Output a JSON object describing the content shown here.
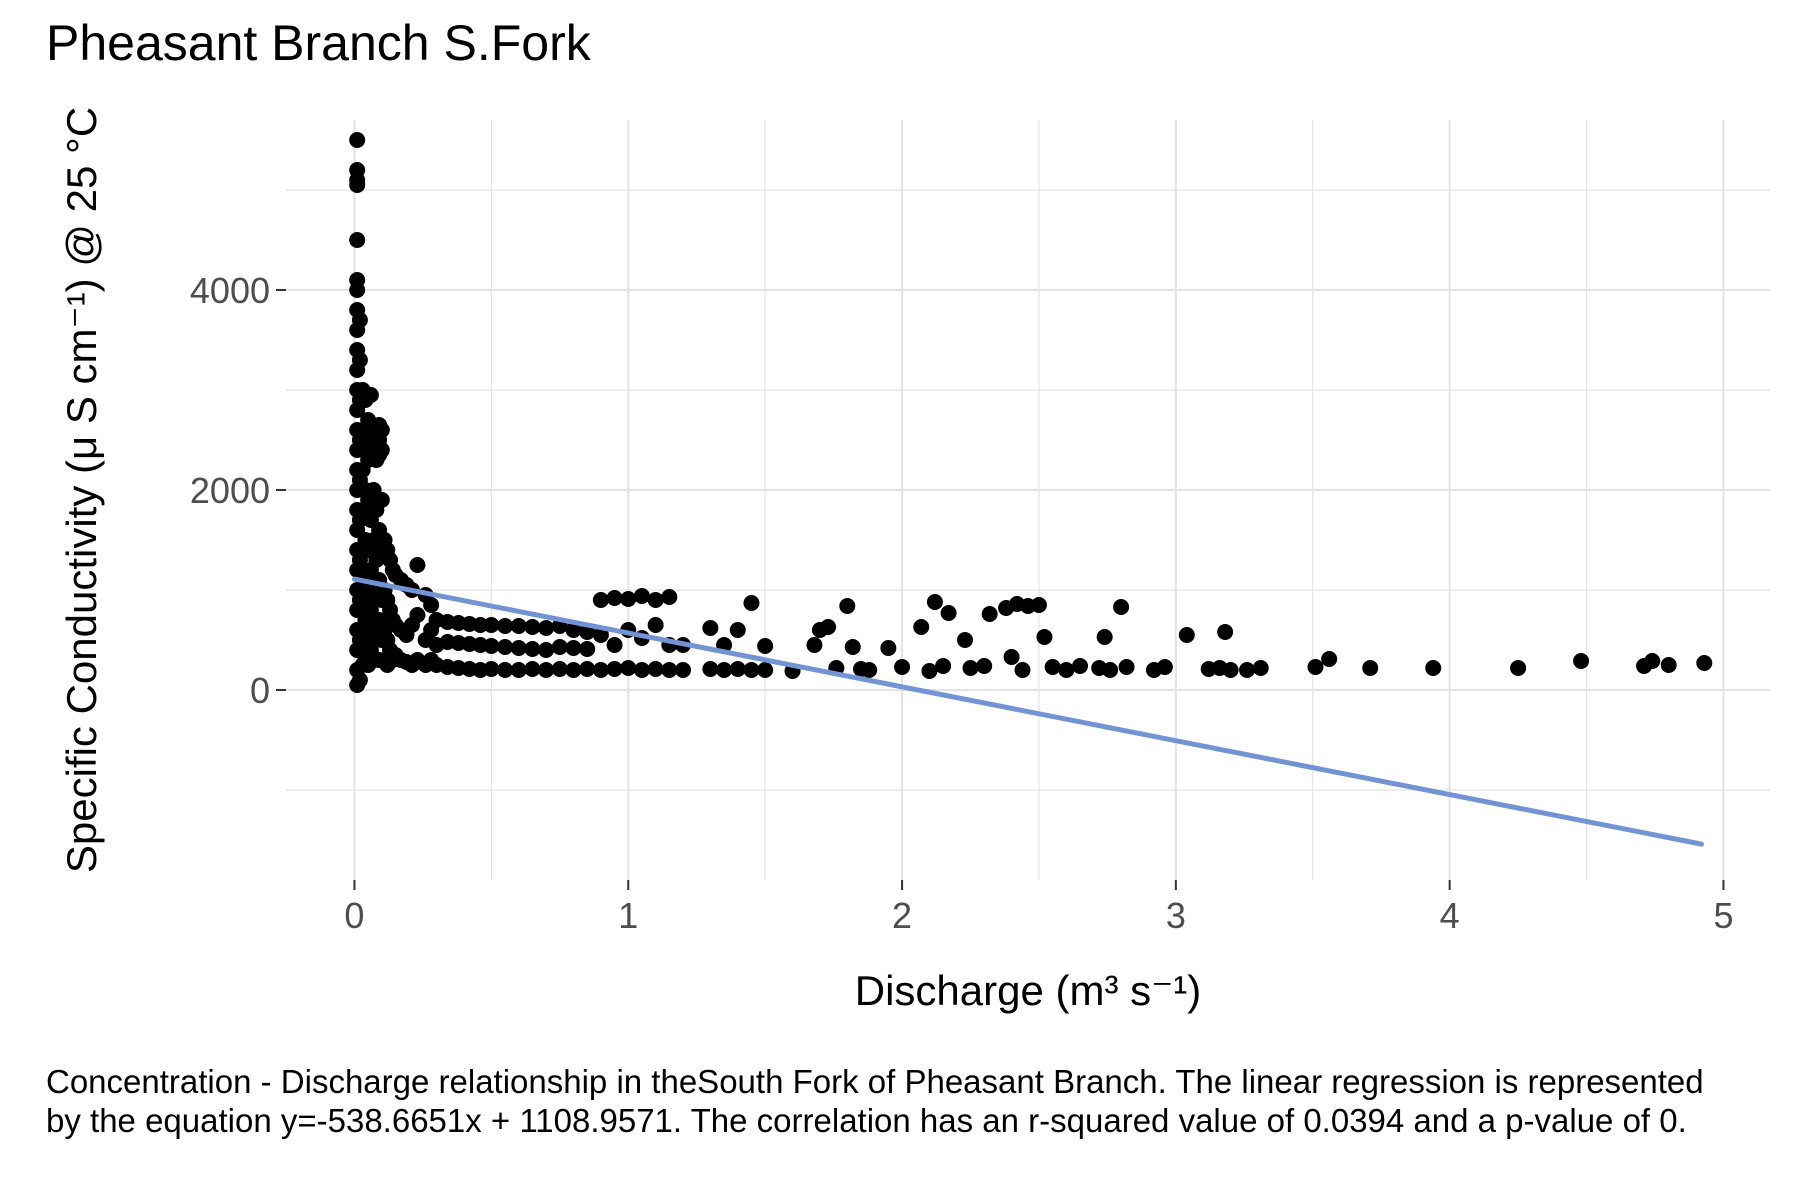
{
  "title": "Pheasant Branch S.Fork",
  "caption": "Concentration - Discharge relationship in theSouth Fork of Pheasant Branch. The linear regression is represented by the equation y=-538.6651x + 1108.9571. The correlation has an r-squared value of 0.0394 and a p-value of 0.",
  "colors": {
    "points": "#000000",
    "regression": "#7394d4",
    "grid": "#e3e3e3",
    "tick_text": "#4d4d4d"
  },
  "chart_data": {
    "type": "scatter",
    "title": "Pheasant Branch S.Fork",
    "xlabel": "Discharge (m³ s⁻¹)",
    "ylabel": "Specific Conductivity (μ S cm⁻¹) @ 25 °C",
    "xlim": [
      -0.25,
      5.17
    ],
    "ylim": [
      -1900,
      5700
    ],
    "x_ticks": [
      0,
      1,
      2,
      3,
      4,
      5
    ],
    "x_tick_labels": [
      "0",
      "1",
      "2",
      "3",
      "4",
      "5"
    ],
    "y_ticks": [
      0,
      2000,
      4000
    ],
    "y_tick_labels": [
      "0",
      "2000",
      "4000"
    ],
    "grid": true,
    "legend": "none",
    "regression": {
      "slope": -538.6651,
      "intercept": 1108.9571,
      "r_squared": 0.0394,
      "p_value": 0,
      "x_range": [
        0,
        4.92
      ]
    },
    "series": [
      {
        "points": [
          [
            0.01,
            5500
          ],
          [
            0.01,
            5200
          ],
          [
            0.01,
            5100
          ],
          [
            0.01,
            5050
          ],
          [
            0.01,
            4500
          ],
          [
            0.01,
            4100
          ],
          [
            0.01,
            4000
          ],
          [
            0.01,
            3800
          ],
          [
            0.01,
            3600
          ],
          [
            0.01,
            3400
          ],
          [
            0.01,
            3200
          ],
          [
            0.01,
            3000
          ],
          [
            0.01,
            2800
          ],
          [
            0.01,
            2600
          ],
          [
            0.01,
            2400
          ],
          [
            0.01,
            2200
          ],
          [
            0.01,
            2000
          ],
          [
            0.01,
            1800
          ],
          [
            0.01,
            1600
          ],
          [
            0.01,
            1400
          ],
          [
            0.01,
            1200
          ],
          [
            0.01,
            1000
          ],
          [
            0.01,
            800
          ],
          [
            0.01,
            600
          ],
          [
            0.01,
            400
          ],
          [
            0.01,
            200
          ],
          [
            0.01,
            50
          ],
          [
            0.02,
            3700
          ],
          [
            0.02,
            3300
          ],
          [
            0.02,
            2900
          ],
          [
            0.02,
            2500
          ],
          [
            0.02,
            2100
          ],
          [
            0.02,
            1700
          ],
          [
            0.02,
            1300
          ],
          [
            0.02,
            900
          ],
          [
            0.02,
            500
          ],
          [
            0.02,
            100
          ],
          [
            0.03,
            3000
          ],
          [
            0.03,
            2600
          ],
          [
            0.03,
            2200
          ],
          [
            0.03,
            1800
          ],
          [
            0.03,
            1400
          ],
          [
            0.03,
            1000
          ],
          [
            0.03,
            600
          ],
          [
            0.03,
            250
          ],
          [
            0.04,
            2900
          ],
          [
            0.04,
            2500
          ],
          [
            0.04,
            2000
          ],
          [
            0.04,
            1500
          ],
          [
            0.04,
            1100
          ],
          [
            0.04,
            700
          ],
          [
            0.04,
            300
          ],
          [
            0.05,
            2700
          ],
          [
            0.05,
            2300
          ],
          [
            0.05,
            1900
          ],
          [
            0.05,
            1400
          ],
          [
            0.05,
            900
          ],
          [
            0.05,
            500
          ],
          [
            0.05,
            250
          ],
          [
            0.06,
            2950
          ],
          [
            0.06,
            2400
          ],
          [
            0.06,
            1700
          ],
          [
            0.06,
            1200
          ],
          [
            0.06,
            800
          ],
          [
            0.06,
            400
          ],
          [
            0.07,
            2600
          ],
          [
            0.07,
            2000
          ],
          [
            0.07,
            1500
          ],
          [
            0.07,
            1000
          ],
          [
            0.07,
            600
          ],
          [
            0.07,
            300
          ],
          [
            0.08,
            2550
          ],
          [
            0.08,
            2450
          ],
          [
            0.08,
            2300
          ],
          [
            0.08,
            1800
          ],
          [
            0.08,
            1300
          ],
          [
            0.08,
            900
          ],
          [
            0.08,
            500
          ],
          [
            0.09,
            2650
          ],
          [
            0.09,
            2500
          ],
          [
            0.09,
            2350
          ],
          [
            0.09,
            1600
          ],
          [
            0.09,
            1100
          ],
          [
            0.09,
            700
          ],
          [
            0.09,
            300
          ],
          [
            0.1,
            2600
          ],
          [
            0.1,
            2400
          ],
          [
            0.1,
            1900
          ],
          [
            0.1,
            1400
          ],
          [
            0.1,
            900
          ],
          [
            0.1,
            500
          ],
          [
            0.11,
            1500
          ],
          [
            0.11,
            1000
          ],
          [
            0.11,
            600
          ],
          [
            0.11,
            300
          ],
          [
            0.12,
            1400
          ],
          [
            0.12,
            900
          ],
          [
            0.12,
            500
          ],
          [
            0.12,
            250
          ],
          [
            0.13,
            1300
          ],
          [
            0.13,
            800
          ],
          [
            0.13,
            400
          ],
          [
            0.14,
            1200
          ],
          [
            0.14,
            700
          ],
          [
            0.14,
            300
          ],
          [
            0.15,
            1150
          ],
          [
            0.15,
            650
          ],
          [
            0.15,
            350
          ],
          [
            0.17,
            1100
          ],
          [
            0.17,
            600
          ],
          [
            0.17,
            300
          ],
          [
            0.19,
            1050
          ],
          [
            0.19,
            550
          ],
          [
            0.19,
            280
          ],
          [
            0.21,
            1000
          ],
          [
            0.21,
            650
          ],
          [
            0.21,
            250
          ],
          [
            0.23,
            1250
          ],
          [
            0.23,
            750
          ],
          [
            0.23,
            300
          ],
          [
            0.26,
            950
          ],
          [
            0.26,
            500
          ],
          [
            0.26,
            250
          ],
          [
            0.28,
            850
          ],
          [
            0.28,
            600
          ],
          [
            0.28,
            300
          ],
          [
            0.3,
            700
          ],
          [
            0.3,
            450
          ],
          [
            0.3,
            250
          ],
          [
            0.34,
            680
          ],
          [
            0.34,
            480
          ],
          [
            0.34,
            230
          ],
          [
            0.38,
            670
          ],
          [
            0.38,
            470
          ],
          [
            0.38,
            220
          ],
          [
            0.42,
            660
          ],
          [
            0.42,
            460
          ],
          [
            0.42,
            210
          ],
          [
            0.46,
            650
          ],
          [
            0.46,
            450
          ],
          [
            0.46,
            200
          ],
          [
            0.5,
            650
          ],
          [
            0.5,
            440
          ],
          [
            0.5,
            210
          ],
          [
            0.55,
            640
          ],
          [
            0.55,
            430
          ],
          [
            0.55,
            200
          ],
          [
            0.6,
            640
          ],
          [
            0.6,
            420
          ],
          [
            0.6,
            200
          ],
          [
            0.65,
            630
          ],
          [
            0.65,
            410
          ],
          [
            0.65,
            210
          ],
          [
            0.7,
            620
          ],
          [
            0.7,
            400
          ],
          [
            0.7,
            200
          ],
          [
            0.75,
            640
          ],
          [
            0.75,
            430
          ],
          [
            0.75,
            210
          ],
          [
            0.8,
            600
          ],
          [
            0.8,
            420
          ],
          [
            0.8,
            200
          ],
          [
            0.85,
            580
          ],
          [
            0.85,
            410
          ],
          [
            0.85,
            210
          ],
          [
            0.9,
            900
          ],
          [
            0.9,
            550
          ],
          [
            0.9,
            200
          ],
          [
            0.95,
            920
          ],
          [
            0.95,
            450
          ],
          [
            0.95,
            210
          ],
          [
            1.0,
            910
          ],
          [
            1.0,
            600
          ],
          [
            1.0,
            220
          ],
          [
            1.05,
            940
          ],
          [
            1.05,
            520
          ],
          [
            1.05,
            200
          ],
          [
            1.1,
            900
          ],
          [
            1.1,
            650
          ],
          [
            1.1,
            210
          ],
          [
            1.15,
            930
          ],
          [
            1.15,
            450
          ],
          [
            1.15,
            200
          ],
          [
            1.2,
            200
          ],
          [
            1.2,
            450
          ],
          [
            1.3,
            210
          ],
          [
            1.3,
            620
          ],
          [
            1.35,
            200
          ],
          [
            1.35,
            450
          ],
          [
            1.4,
            600
          ],
          [
            1.4,
            210
          ],
          [
            1.45,
            870
          ],
          [
            1.45,
            200
          ],
          [
            1.5,
            440
          ],
          [
            1.5,
            200
          ],
          [
            1.6,
            190
          ],
          [
            1.68,
            450
          ],
          [
            1.7,
            600
          ],
          [
            1.73,
            630
          ],
          [
            1.76,
            220
          ],
          [
            1.8,
            840
          ],
          [
            1.82,
            430
          ],
          [
            1.85,
            210
          ],
          [
            1.88,
            200
          ],
          [
            1.95,
            420
          ],
          [
            2.0,
            230
          ],
          [
            2.07,
            630
          ],
          [
            2.1,
            190
          ],
          [
            2.12,
            880
          ],
          [
            2.15,
            240
          ],
          [
            2.17,
            770
          ],
          [
            2.23,
            500
          ],
          [
            2.25,
            220
          ],
          [
            2.3,
            240
          ],
          [
            2.32,
            760
          ],
          [
            2.38,
            820
          ],
          [
            2.4,
            330
          ],
          [
            2.42,
            860
          ],
          [
            2.44,
            200
          ],
          [
            2.46,
            840
          ],
          [
            2.5,
            850
          ],
          [
            2.52,
            530
          ],
          [
            2.55,
            230
          ],
          [
            2.6,
            200
          ],
          [
            2.65,
            240
          ],
          [
            2.72,
            220
          ],
          [
            2.74,
            530
          ],
          [
            2.76,
            200
          ],
          [
            2.8,
            830
          ],
          [
            2.82,
            230
          ],
          [
            2.92,
            200
          ],
          [
            2.96,
            230
          ],
          [
            3.04,
            550
          ],
          [
            3.12,
            210
          ],
          [
            3.16,
            220
          ],
          [
            3.18,
            580
          ],
          [
            3.2,
            200
          ],
          [
            3.26,
            200
          ],
          [
            3.31,
            220
          ],
          [
            3.51,
            230
          ],
          [
            3.56,
            310
          ],
          [
            3.71,
            220
          ],
          [
            3.94,
            220
          ],
          [
            4.25,
            220
          ],
          [
            4.48,
            290
          ],
          [
            4.71,
            240
          ],
          [
            4.74,
            290
          ],
          [
            4.8,
            250
          ],
          [
            4.93,
            270
          ]
        ]
      }
    ]
  }
}
